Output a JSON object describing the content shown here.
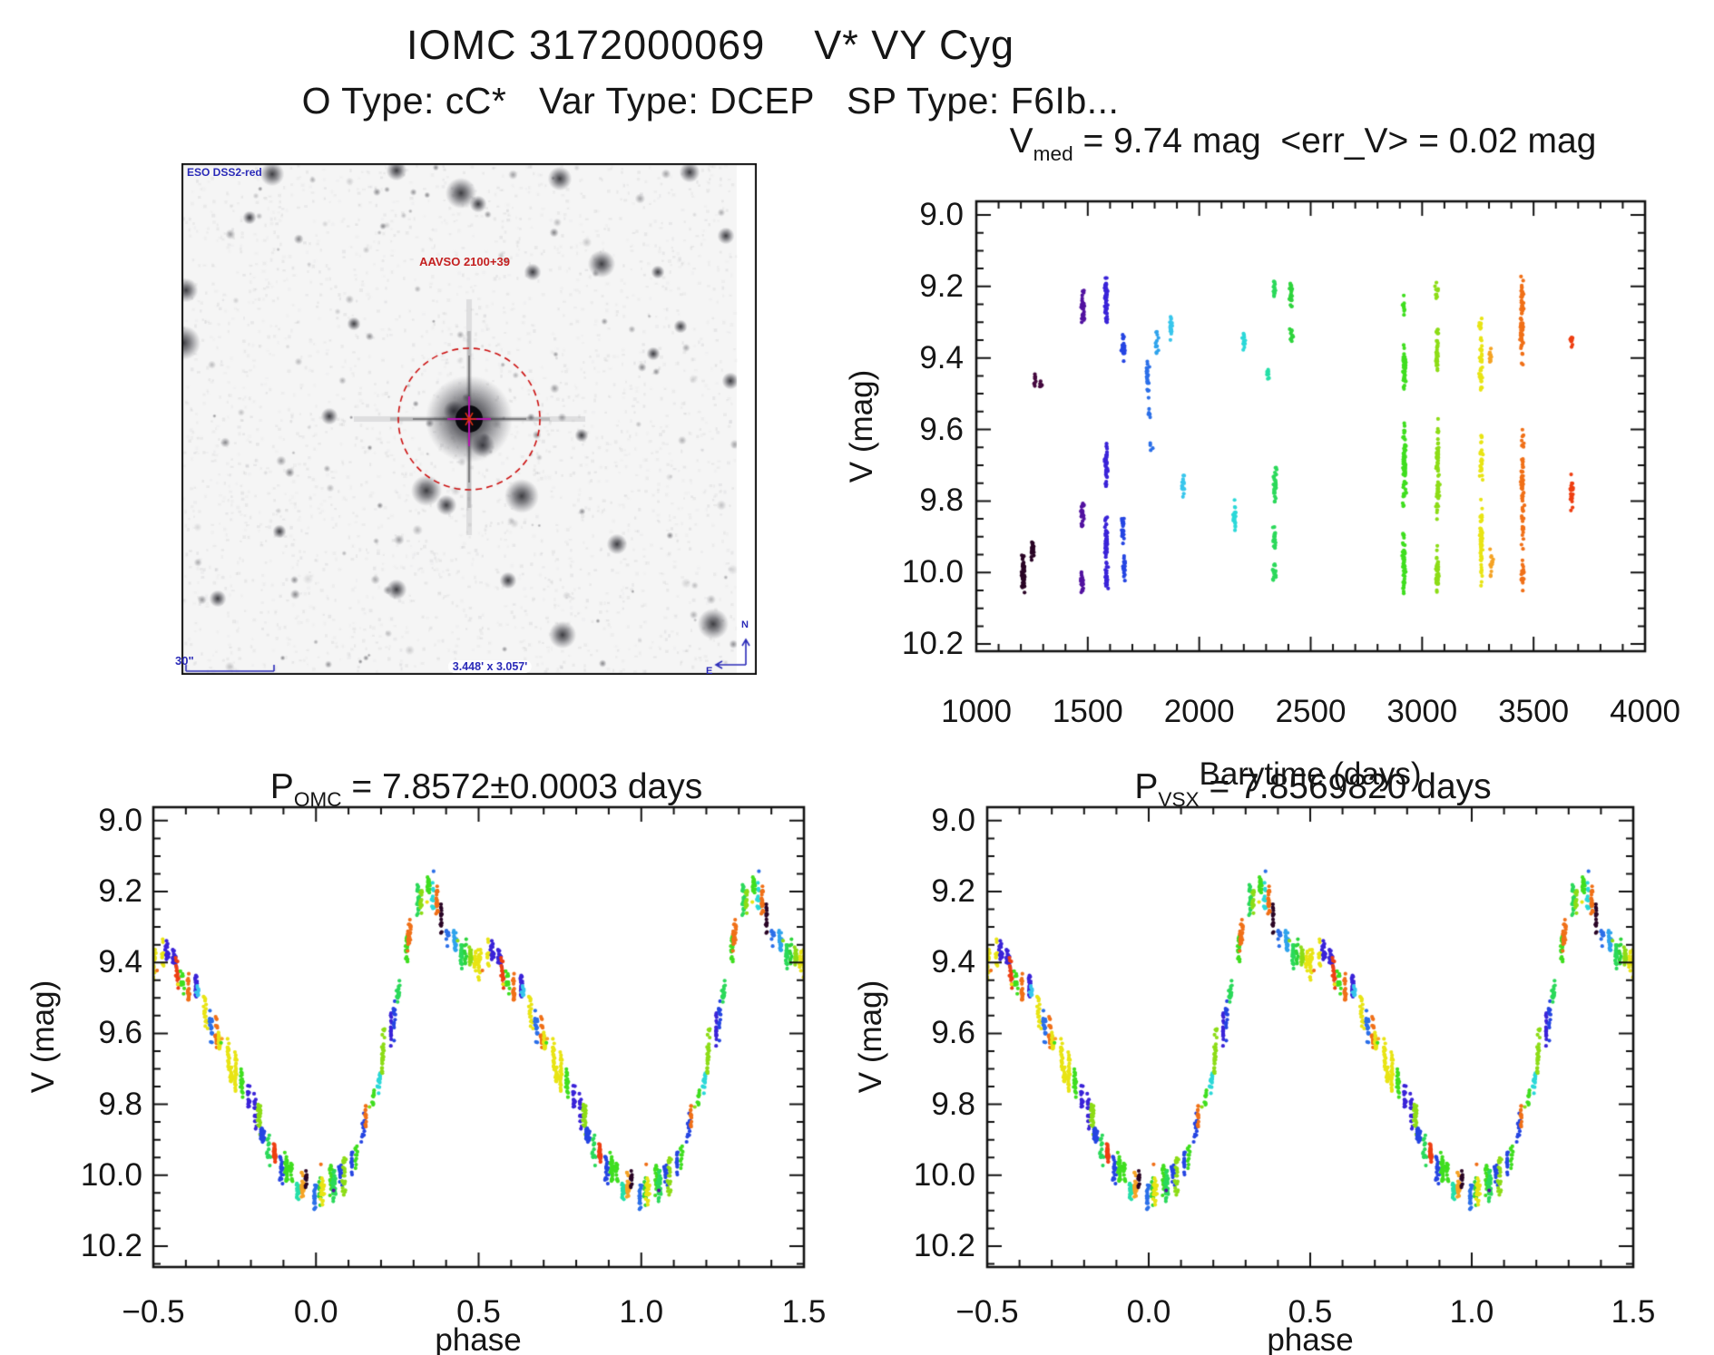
{
  "header": {
    "title": "IOMC 3172000069    V* VY Cyg",
    "subtitle": "O Type: cC*   Var Type: DCEP   SP Type: F6Ib..."
  },
  "finder_chart": {
    "survey": "ESO DSS2-red",
    "chart_id": "AAVSO 2100+39",
    "scale_bar": "30\"",
    "field_size": "3.448' x 3.057'",
    "north": "N",
    "east": "E",
    "annotation_color": "#2a2ab8",
    "marker_color": "#cc1010",
    "crosshair_color": "#b513ad"
  },
  "colors": {
    "palette": [
      "#2A0526",
      "#45093F",
      "#5212A0",
      "#3A23D8",
      "#2545E2",
      "#2B6FE8",
      "#2FA3EC",
      "#38C6EC",
      "#2BD8D8",
      "#25DFA8",
      "#2BD95A",
      "#2ED43C",
      "#3FDE1F",
      "#8CDC16",
      "#E8E414",
      "#F5A324",
      "#F07018",
      "#EE3F12"
    ],
    "phase_weights": [
      1,
      1,
      2,
      3,
      3,
      2,
      2,
      2,
      2,
      2,
      2,
      3,
      8,
      7,
      7,
      2,
      6,
      3
    ],
    "axis_color": "#111111"
  },
  "chart_data": [
    {
      "id": "barytime-lightcurve",
      "type": "scatter",
      "title": {
        "prefix": "V",
        "sub": "med",
        "rest": " = 9.74 mag  <err_V> = 0.02 mag"
      },
      "xlabel": "Barytime (days)",
      "ylabel": "V (mag)",
      "xlim": [
        1000,
        4000
      ],
      "ylim": [
        10.22,
        8.96
      ],
      "y_inverted": true,
      "grid": false,
      "legend": false,
      "xticks": [
        "1000",
        "1500",
        "2000",
        "2500",
        "3000",
        "3500",
        "4000"
      ],
      "xtick_vals": [
        1000,
        1500,
        2000,
        2500,
        3000,
        3500,
        4000
      ],
      "yticks": [
        "9.0",
        "9.2",
        "9.4",
        "9.6",
        "9.8",
        "10.0",
        "10.2"
      ],
      "ytick_vals": [
        9.0,
        9.2,
        9.4,
        9.6,
        9.8,
        10.0,
        10.2
      ],
      "clusters": [
        {
          "t": 1210,
          "v": [
            9.94,
            10.06
          ],
          "n": 45,
          "c": 0
        },
        {
          "t": 1252,
          "v": [
            9.9,
            9.97
          ],
          "n": 22,
          "c": 0
        },
        {
          "t": 1262,
          "v": [
            9.44,
            9.49
          ],
          "n": 10,
          "c": 1
        },
        {
          "t": 1288,
          "v": [
            9.45,
            9.49
          ],
          "n": 7,
          "c": 1
        },
        {
          "t": 1478,
          "v": [
            9.2,
            9.31
          ],
          "n": 26,
          "c": 2
        },
        {
          "t": 1476,
          "v": [
            9.79,
            9.88
          ],
          "n": 26,
          "c": 2
        },
        {
          "t": 1474,
          "v": [
            9.99,
            10.06
          ],
          "n": 20,
          "c": 2
        },
        {
          "t": 1582,
          "v": [
            9.16,
            9.31
          ],
          "n": 60,
          "c": 3
        },
        {
          "t": 1584,
          "v": [
            9.63,
            9.77
          ],
          "n": 40,
          "c": 3
        },
        {
          "t": 1583,
          "v": [
            9.83,
            10.0
          ],
          "n": 50,
          "c": 3
        },
        {
          "t": 1586,
          "v": [
            9.98,
            10.05
          ],
          "n": 24,
          "c": 3
        },
        {
          "t": 1660,
          "v": [
            9.33,
            9.42
          ],
          "n": 26,
          "c": 4
        },
        {
          "t": 1658,
          "v": [
            9.84,
            9.93
          ],
          "n": 24,
          "c": 4
        },
        {
          "t": 1663,
          "v": [
            9.94,
            10.03
          ],
          "n": 22,
          "c": 4
        },
        {
          "t": 1768,
          "v": [
            9.39,
            9.52
          ],
          "n": 24,
          "c": 5
        },
        {
          "t": 1772,
          "v": [
            9.54,
            9.57
          ],
          "n": 5,
          "c": 5
        },
        {
          "t": 1786,
          "v": [
            9.62,
            9.66
          ],
          "n": 4,
          "c": 5
        },
        {
          "t": 1810,
          "v": [
            9.32,
            9.4
          ],
          "n": 12,
          "c": 6
        },
        {
          "t": 1875,
          "v": [
            9.27,
            9.36
          ],
          "n": 16,
          "c": 7
        },
        {
          "t": 1928,
          "v": [
            9.72,
            9.8
          ],
          "n": 14,
          "c": 7
        },
        {
          "t": 2160,
          "v": [
            9.79,
            9.9
          ],
          "n": 22,
          "c": 8
        },
        {
          "t": 2200,
          "v": [
            9.32,
            9.39
          ],
          "n": 14,
          "c": 8
        },
        {
          "t": 2310,
          "v": [
            9.41,
            9.47
          ],
          "n": 10,
          "c": 9
        },
        {
          "t": 2335,
          "v": [
            9.18,
            9.24
          ],
          "n": 16,
          "c": 10
        },
        {
          "t": 2340,
          "v": [
            9.69,
            9.82
          ],
          "n": 30,
          "c": 10
        },
        {
          "t": 2338,
          "v": [
            9.87,
            9.95
          ],
          "n": 22,
          "c": 10
        },
        {
          "t": 2336,
          "v": [
            9.97,
            10.03
          ],
          "n": 16,
          "c": 10
        },
        {
          "t": 2412,
          "v": [
            9.18,
            9.27
          ],
          "n": 24,
          "c": 11
        },
        {
          "t": 2414,
          "v": [
            9.31,
            9.37
          ],
          "n": 12,
          "c": 11
        },
        {
          "t": 2918,
          "v": [
            9.22,
            9.3
          ],
          "n": 10,
          "c": 12
        },
        {
          "t": 2920,
          "v": [
            9.35,
            9.51
          ],
          "n": 50,
          "c": 12
        },
        {
          "t": 2921,
          "v": [
            9.56,
            9.84
          ],
          "n": 70,
          "c": 12
        },
        {
          "t": 2919,
          "v": [
            9.87,
            10.07
          ],
          "n": 50,
          "c": 12
        },
        {
          "t": 3066,
          "v": [
            9.18,
            9.24
          ],
          "n": 10,
          "c": 13
        },
        {
          "t": 3068,
          "v": [
            9.31,
            9.45
          ],
          "n": 34,
          "c": 13
        },
        {
          "t": 3070,
          "v": [
            9.56,
            9.88
          ],
          "n": 60,
          "c": 13
        },
        {
          "t": 3069,
          "v": [
            9.92,
            10.08
          ],
          "n": 38,
          "c": 13
        },
        {
          "t": 3262,
          "v": [
            9.28,
            9.33
          ],
          "n": 8,
          "c": 14
        },
        {
          "t": 3264,
          "v": [
            9.34,
            9.5
          ],
          "n": 34,
          "c": 14
        },
        {
          "t": 3266,
          "v": [
            9.6,
            9.75
          ],
          "n": 28,
          "c": 14
        },
        {
          "t": 3265,
          "v": [
            9.78,
            10.05
          ],
          "n": 60,
          "c": 14
        },
        {
          "t": 3306,
          "v": [
            9.36,
            9.43
          ],
          "n": 12,
          "c": 15
        },
        {
          "t": 3310,
          "v": [
            9.93,
            10.02
          ],
          "n": 14,
          "c": 15
        },
        {
          "t": 3448,
          "v": [
            9.16,
            9.45
          ],
          "n": 70,
          "c": 16
        },
        {
          "t": 3450,
          "v": [
            9.57,
            9.96
          ],
          "n": 65,
          "c": 16
        },
        {
          "t": 3452,
          "v": [
            9.96,
            10.06
          ],
          "n": 18,
          "c": 16
        },
        {
          "t": 3670,
          "v": [
            9.32,
            9.38
          ],
          "n": 10,
          "c": 17
        },
        {
          "t": 3672,
          "v": [
            9.7,
            9.83
          ],
          "n": 22,
          "c": 17
        }
      ]
    },
    {
      "id": "phase-folded-omc",
      "type": "scatter",
      "title": {
        "prefix": "P",
        "sub": "OMC",
        "rest": " = 7.8572±0.0003 days"
      },
      "xlabel": "phase",
      "ylabel": "V (mag)",
      "xlim": [
        -0.5,
        1.5
      ],
      "ylim": [
        10.26,
        8.96
      ],
      "y_inverted": true,
      "grid": false,
      "legend": false,
      "xticks": [
        "−0.5",
        "0.0",
        "0.5",
        "1.0",
        "1.5"
      ],
      "xtick_vals": [
        -0.5,
        0.0,
        0.5,
        1.0,
        1.5
      ],
      "yticks": [
        "9.0",
        "9.2",
        "9.4",
        "9.6",
        "9.8",
        "10.0",
        "10.2"
      ],
      "ytick_vals": [
        9.0,
        9.2,
        9.4,
        9.6,
        9.8,
        10.0,
        10.2
      ],
      "mean_curve": {
        "phase": [
          0,
          0.04,
          0.08,
          0.12,
          0.16,
          0.2,
          0.24,
          0.26,
          0.28,
          0.3,
          0.32,
          0.34,
          0.36,
          0.38,
          0.4,
          0.44,
          0.48,
          0.5,
          0.52,
          0.54,
          0.58,
          0.6,
          0.64,
          0.68,
          0.72,
          0.76,
          0.8,
          0.84,
          0.88,
          0.92,
          0.96,
          1.0
        ],
        "v": [
          10.045,
          10.03,
          9.99,
          9.94,
          9.84,
          9.7,
          9.55,
          9.47,
          9.37,
          9.27,
          9.215,
          9.2,
          9.225,
          9.26,
          9.3,
          9.355,
          9.4,
          9.425,
          9.4,
          9.38,
          9.42,
          9.455,
          9.47,
          9.575,
          9.655,
          9.74,
          9.815,
          9.885,
          9.945,
          10.0,
          10.035,
          10.045
        ]
      },
      "n_clusters": 60,
      "seed": 20
    },
    {
      "id": "phase-folded-vsx",
      "type": "scatter",
      "title": {
        "prefix": "P",
        "sub": "VSX",
        "rest": " = 7.8569820 days"
      },
      "xlabel": "phase",
      "ylabel": "V (mag)",
      "xlim": [
        -0.5,
        1.5
      ],
      "ylim": [
        10.26,
        8.96
      ],
      "y_inverted": true,
      "grid": false,
      "legend": false,
      "xticks": [
        "−0.5",
        "0.0",
        "0.5",
        "1.0",
        "1.5"
      ],
      "xtick_vals": [
        -0.5,
        0.0,
        0.5,
        1.0,
        1.5
      ],
      "yticks": [
        "9.0",
        "9.2",
        "9.4",
        "9.6",
        "9.8",
        "10.0",
        "10.2"
      ],
      "ytick_vals": [
        9.0,
        9.2,
        9.4,
        9.6,
        9.8,
        10.0,
        10.2
      ],
      "mean_curve": {
        "phase": [
          0,
          0.04,
          0.08,
          0.12,
          0.16,
          0.2,
          0.24,
          0.26,
          0.28,
          0.3,
          0.32,
          0.34,
          0.36,
          0.38,
          0.4,
          0.44,
          0.48,
          0.5,
          0.52,
          0.54,
          0.58,
          0.6,
          0.64,
          0.68,
          0.72,
          0.76,
          0.8,
          0.84,
          0.88,
          0.92,
          0.96,
          1.0
        ],
        "v": [
          10.045,
          10.03,
          9.99,
          9.94,
          9.84,
          9.7,
          9.55,
          9.47,
          9.37,
          9.27,
          9.215,
          9.2,
          9.225,
          9.26,
          9.3,
          9.355,
          9.4,
          9.425,
          9.4,
          9.38,
          9.42,
          9.455,
          9.47,
          9.575,
          9.655,
          9.74,
          9.815,
          9.885,
          9.945,
          10.0,
          10.035,
          10.045
        ]
      },
      "n_clusters": 60,
      "seed": 20
    }
  ]
}
